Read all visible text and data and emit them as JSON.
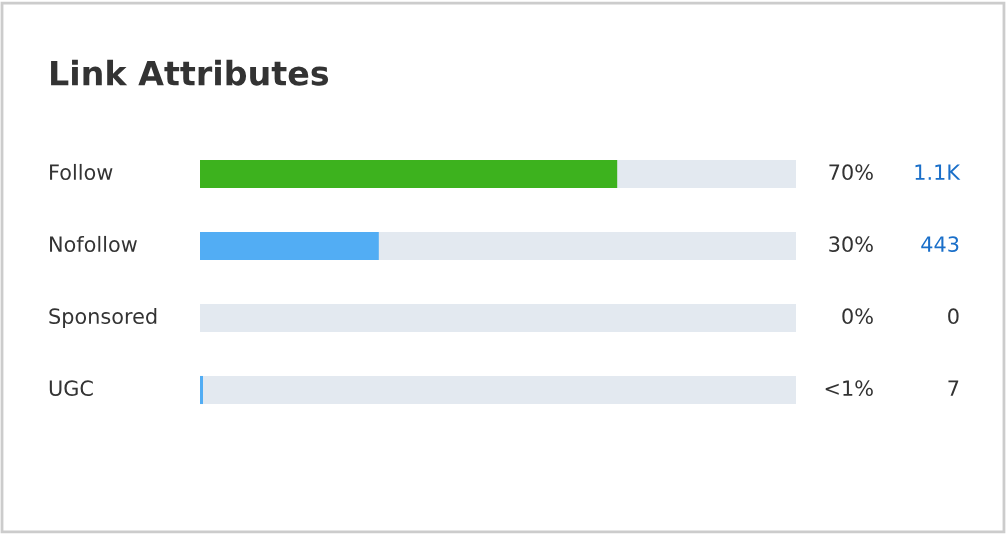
{
  "chart_data": {
    "type": "bar",
    "orientation": "horizontal",
    "title": "Link Attributes",
    "categories": [
      "Follow",
      "Nofollow",
      "Sponsored",
      "UGC"
    ],
    "xlim": [
      0,
      100
    ],
    "series": [
      {
        "colors": [
          "#3db21e",
          "#52adf4",
          "#52adf4",
          "#52adf4"
        ],
        "values": [
          70,
          30,
          0,
          0.5
        ],
        "value_labels": [
          "70%",
          "30%",
          "0%",
          "<1%"
        ]
      }
    ],
    "bands": [
      {
        "axis": "x",
        "from": 0,
        "to": 100,
        "color": "#e3e9f0"
      }
    ],
    "annotations": [
      "1.1K",
      "443",
      "0",
      "7"
    ]
  }
}
